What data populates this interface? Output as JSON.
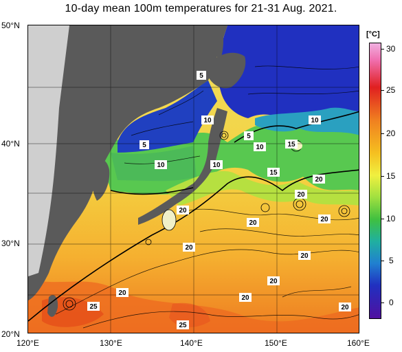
{
  "title": "10-day mean 100m temperatures for 21-31 Aug. 2021.",
  "axes": {
    "lat_labels": [
      "50°N",
      "40°N",
      "30°N",
      "20°N"
    ],
    "lon_labels": [
      "120°E",
      "130°E",
      "140°E",
      "150°E",
      "160°E"
    ]
  },
  "colorbar": {
    "unit": "[°C]",
    "ticks": [
      "30",
      "25",
      "20",
      "15",
      "10",
      "5",
      "0"
    ]
  },
  "contour_labels": [
    "5",
    "10",
    "5",
    "10",
    "10",
    "5",
    "10",
    "15",
    "10",
    "15",
    "20",
    "20",
    "20",
    "20",
    "20",
    "20",
    "20",
    "20",
    "20",
    "20",
    "20",
    "25",
    "25"
  ]
}
